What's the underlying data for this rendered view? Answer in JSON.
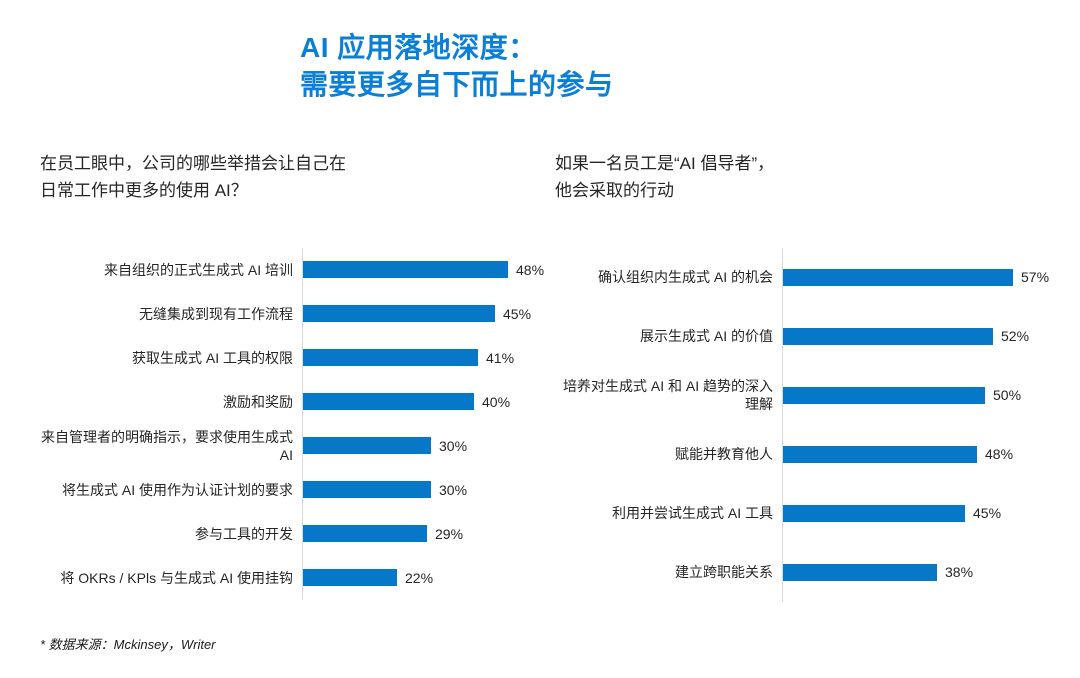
{
  "title": {
    "line1": "AI 应用落地深度：",
    "line2": "需要更多自下而上的参与"
  },
  "colors": {
    "title_blue": "#0b7fd6",
    "bar_blue": "#0778c8",
    "axis_gray": "#d8d8d8",
    "text_dark": "#262626"
  },
  "footnote": "* 数据来源：Mckinsey，Writer",
  "chart_data": [
    {
      "type": "bar",
      "orientation": "horizontal",
      "question_line1": "在员工眼中，公司的哪些举措会让自己在",
      "question_line2": "日常工作中更多的使用 AI？",
      "categories": [
        "来自组织的正式生成式 AI 培训",
        "无缝集成到现有工作流程",
        "获取生成式 AI 工具的权限",
        "激励和奖励",
        "来自管理者的明确指示，要求使用生成式 AI",
        "将生成式 AI 使用作为认证计划的要求",
        "参与工具的开发",
        "将 OKRs / KPls 与生成式 AI 使用挂钩"
      ],
      "values": [
        48,
        45,
        41,
        40,
        30,
        30,
        29,
        22
      ],
      "value_labels": [
        "48%",
        "45%",
        "41%",
        "40%",
        "30%",
        "30%",
        "29%",
        "22%"
      ],
      "xlim": [
        0,
        57
      ],
      "grid": false,
      "legend": false,
      "bar_color": "#0778c8"
    },
    {
      "type": "bar",
      "orientation": "horizontal",
      "question_line1": "如果一名员工是“AI 倡导者”，",
      "question_line2": "他会采取的行动",
      "categories": [
        "确认组织内生成式 AI 的机会",
        "展示生成式 AI 的价值",
        "培养对生成式 AI 和 AI 趋势的深入理解",
        "赋能并教育他人",
        "利用并尝试生成式 AI 工具",
        "建立跨职能关系"
      ],
      "values": [
        57,
        52,
        50,
        48,
        45,
        38
      ],
      "value_labels": [
        "57%",
        "52%",
        "50%",
        "48%",
        "45%",
        "38%"
      ],
      "xlim": [
        0,
        57
      ],
      "grid": false,
      "legend": false,
      "bar_color": "#0778c8"
    }
  ]
}
